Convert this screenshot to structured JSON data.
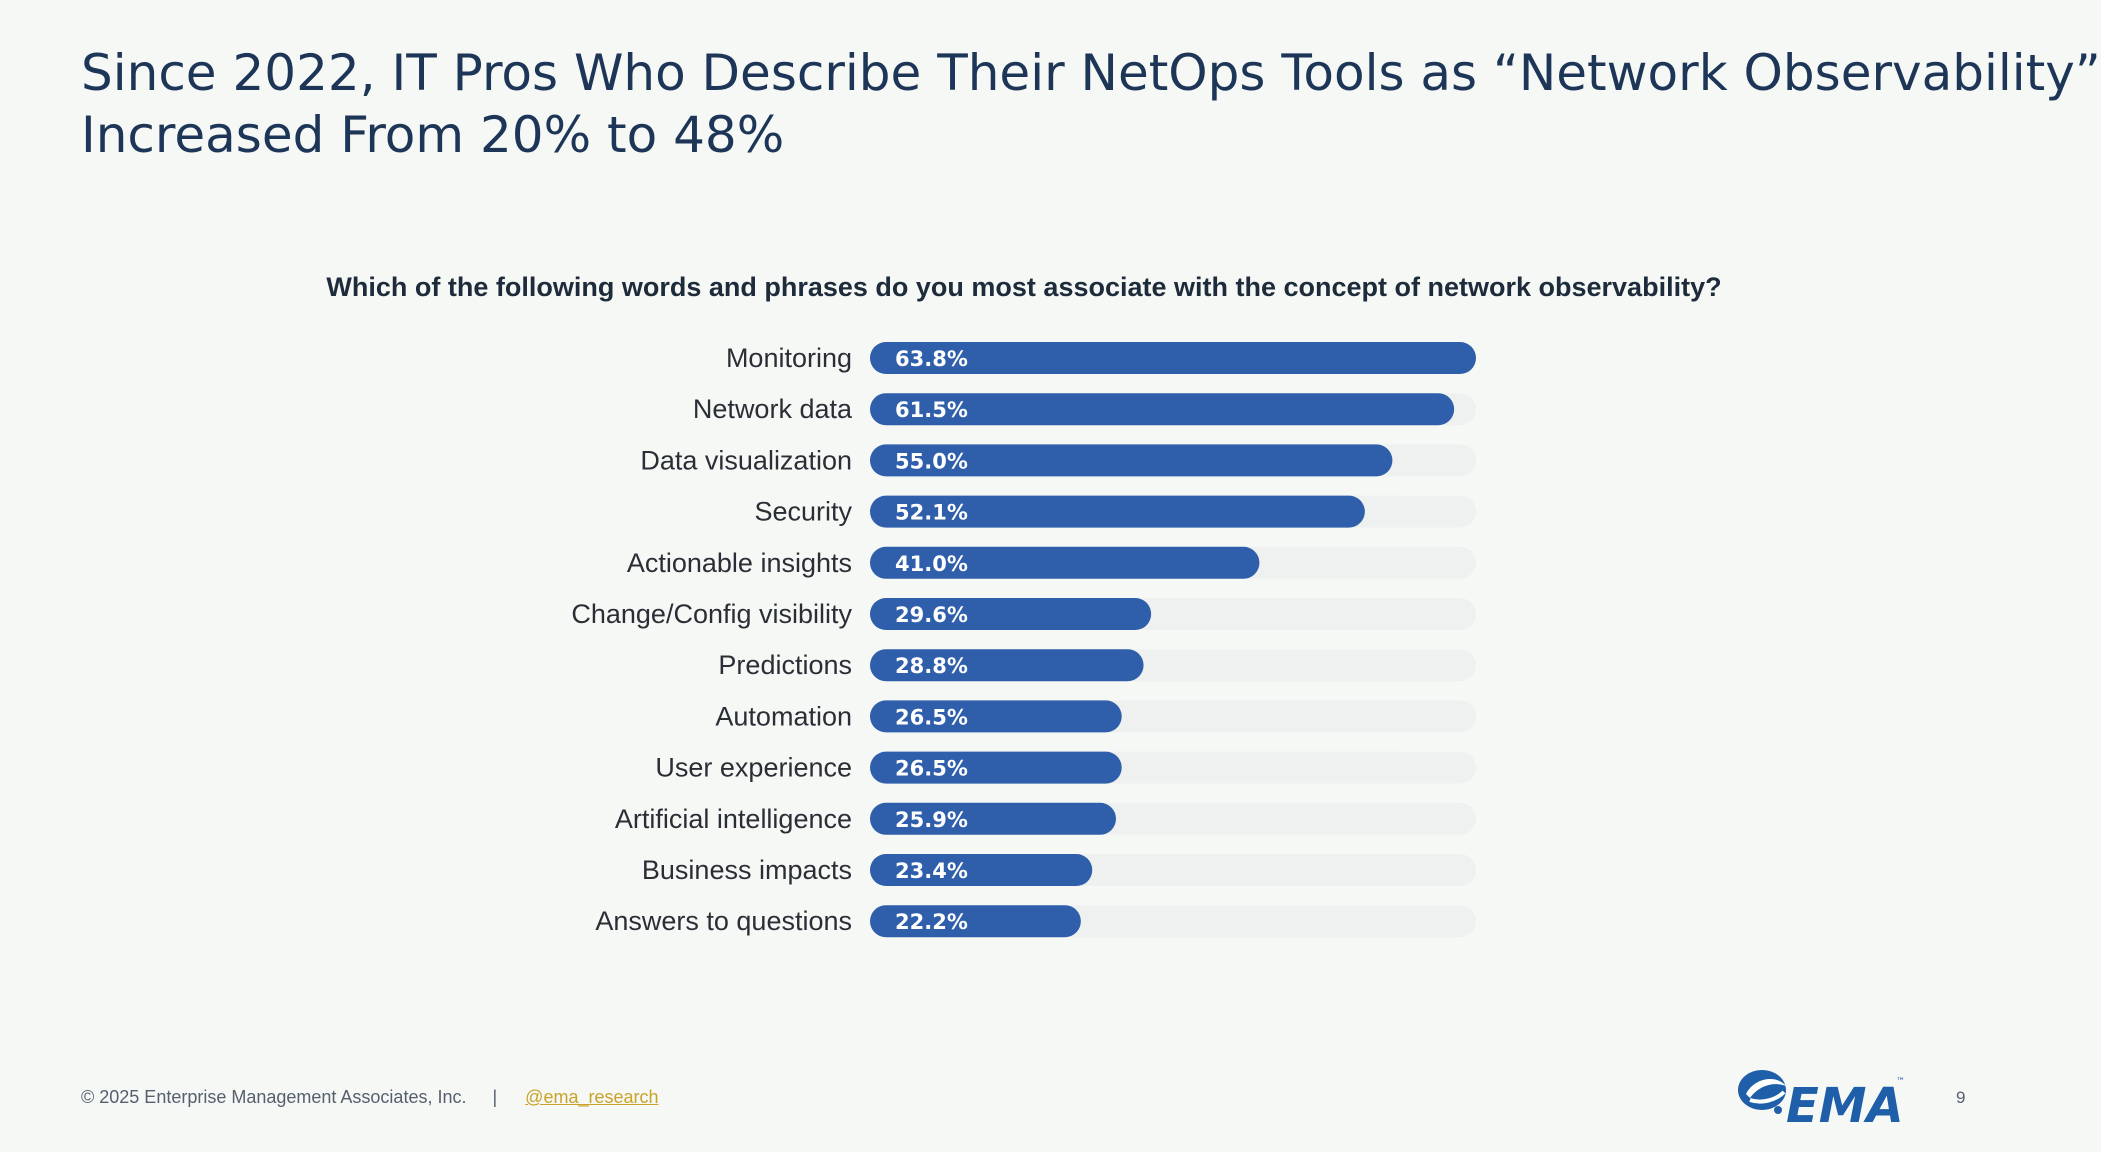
{
  "slide": {
    "title_line1": "Since 2022, IT Pros Who Describe Their NetOps Tools as “Network Observability”",
    "title_line2": "Increased From 20% to 48%"
  },
  "chart_data": {
    "type": "bar",
    "orientation": "horizontal",
    "title": "Which of the following words and phrases do you most associate with the concept of network observability?",
    "categories": [
      "Monitoring",
      "Network data",
      "Data visualization",
      "Security",
      "Actionable insights",
      "Change/Config visibility",
      "Predictions",
      "Automation",
      "User experience",
      "Artificial intelligence",
      "Business impacts",
      "Answers to questions"
    ],
    "values": [
      63.8,
      61.5,
      55.0,
      52.1,
      41.0,
      29.6,
      28.8,
      26.5,
      26.5,
      25.9,
      23.4,
      22.2
    ],
    "value_labels": [
      "63.8%",
      "61.5%",
      "55.0%",
      "52.1%",
      "41.0%",
      "29.6%",
      "28.8%",
      "26.5%",
      "26.5%",
      "25.9%",
      "23.4%",
      "22.2%"
    ],
    "xlim": [
      0,
      63.8
    ],
    "grid": false,
    "legend": "none",
    "colors": {
      "bar": "#2f5faa",
      "track": "#eef1ef"
    }
  },
  "footer": {
    "copyright": "© 2025 Enterprise Management Associates, Inc.",
    "separator": "|",
    "handle": "@ema_research",
    "logo_text": "EMA",
    "logo_tm": "™",
    "page_number": "9"
  }
}
